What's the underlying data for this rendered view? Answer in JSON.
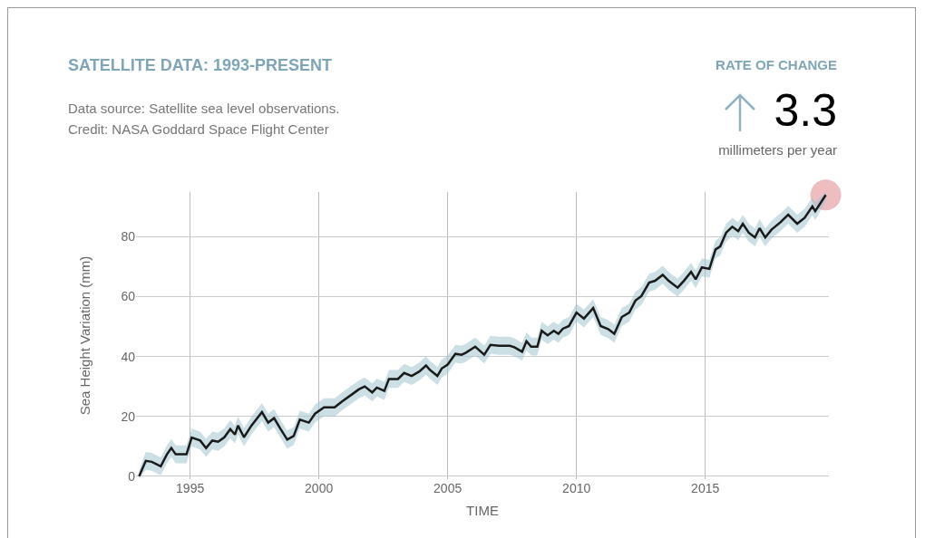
{
  "chart_data": {
    "type": "line",
    "title": "SATELLITE DATA: 1993-PRESENT",
    "subtitle": "Data source: Satellite sea level observations.\nCredit: NASA Goddard Space Flight Center",
    "annotations": [
      "RATE OF CHANGE",
      "3.3",
      "millimeters per year"
    ],
    "xlabel": "TIME",
    "ylabel": "Sea Height Variation (mm)",
    "xlim": [
      1992.9,
      2019.8
    ],
    "xticks": [
      1995,
      2000,
      2005,
      2010,
      2015
    ],
    "ylim": [
      -1,
      95
    ],
    "yticks": [
      0,
      20,
      40,
      60,
      80
    ],
    "grid": true,
    "marker": "none",
    "line_style": "solid",
    "series": [
      {
        "color": "#1a1a1a",
        "x": [
          1993.02,
          1993.28,
          1993.51,
          1993.86,
          1994.1,
          1994.27,
          1994.44,
          1994.86,
          1995.06,
          1995.39,
          1995.62,
          1995.86,
          1996.09,
          1996.33,
          1996.56,
          1996.74,
          1996.86,
          1997.09,
          1997.38,
          1997.79,
          1998.03,
          1998.26,
          1998.5,
          1998.77,
          1999.02,
          1999.26,
          1999.61,
          1999.85,
          2000.2,
          2000.61,
          2000.9,
          2001.31,
          2001.55,
          2001.78,
          2002.07,
          2002.25,
          2002.54,
          2002.72,
          2003.07,
          2003.31,
          2003.6,
          2003.9,
          2004.16,
          2004.3,
          2004.6,
          2004.77,
          2005.0,
          2005.3,
          2005.54,
          2005.71,
          2006.07,
          2006.42,
          2006.66,
          2007.0,
          2007.41,
          2007.59,
          2007.89,
          2008.06,
          2008.24,
          2008.48,
          2008.65,
          2008.88,
          2009.12,
          2009.3,
          2009.47,
          2009.71,
          2010.0,
          2010.29,
          2010.65,
          2010.94,
          2011.23,
          2011.47,
          2011.76,
          2012.05,
          2012.29,
          2012.52,
          2012.82,
          2013.05,
          2013.35,
          2013.58,
          2013.93,
          2014.17,
          2014.45,
          2014.63,
          2014.87,
          2015.16,
          2015.4,
          2015.58,
          2015.81,
          2016.05,
          2016.28,
          2016.46,
          2016.69,
          2016.93,
          2017.11,
          2017.33,
          2017.57,
          2017.92,
          2018.22,
          2018.57,
          2018.86,
          2019.16,
          2019.27,
          2019.68
        ],
        "values": [
          0,
          5.1,
          4.8,
          3.3,
          7.3,
          9.4,
          7.3,
          7.3,
          12.9,
          11.9,
          9.4,
          11.9,
          11.5,
          13,
          15.7,
          13.9,
          16.9,
          13,
          16.9,
          21.4,
          17.9,
          19.4,
          15.9,
          12.2,
          13.4,
          18.9,
          17.9,
          20.9,
          23,
          23,
          25,
          27.5,
          29,
          30,
          28,
          29.6,
          28.5,
          32.5,
          32.5,
          34.5,
          33.5,
          35,
          37,
          35.6,
          33.5,
          36,
          37.3,
          40.9,
          40.6,
          41.3,
          43.3,
          40.6,
          43.9,
          43.6,
          43.6,
          43.1,
          41.6,
          45.1,
          43.3,
          43.3,
          48.6,
          47.1,
          48.6,
          47.6,
          49.3,
          50.2,
          54.7,
          52.7,
          56.2,
          50.2,
          49.2,
          47.6,
          53.2,
          54.7,
          58.7,
          60.2,
          64.7,
          65.3,
          67.3,
          65.3,
          63,
          65.3,
          68.3,
          65.8,
          69.8,
          69.3,
          75.8,
          76.8,
          81.4,
          83.4,
          81.9,
          84.4,
          81.4,
          79.8,
          82.9,
          79.8,
          82.4,
          84.9,
          87.4,
          84.4,
          86.4,
          90.2,
          88.6,
          94
        ],
        "lower": [
          -1,
          2.1,
          1.8,
          0.3,
          4.3,
          6.4,
          4.3,
          4.3,
          9.9,
          8.9,
          6.4,
          8.9,
          8.5,
          10,
          12.7,
          10.9,
          13.9,
          10,
          13.9,
          18.4,
          14.9,
          16.4,
          12.9,
          9.2,
          10.4,
          15.9,
          14.9,
          17.9,
          20,
          20,
          22,
          24.5,
          26,
          27,
          25,
          26.6,
          25.5,
          29.5,
          29.5,
          31.5,
          30.5,
          32,
          34,
          32.6,
          30.5,
          33,
          34.3,
          37.9,
          37.6,
          38.3,
          40.3,
          37.6,
          40.9,
          40.6,
          40.6,
          40.1,
          38.6,
          42.1,
          40.3,
          40.3,
          45.6,
          44.1,
          45.6,
          44.6,
          46.3,
          47.2,
          51.7,
          49.7,
          53.2,
          47.2,
          46.2,
          44.6,
          50.2,
          51.7,
          55.7,
          57.2,
          61.7,
          62.3,
          64.3,
          62.3,
          60,
          62.3,
          65.3,
          62.8,
          66.8,
          66.3,
          72.8,
          73.8,
          78.4,
          80.4,
          78.9,
          81.4,
          78.4,
          76.8,
          79.9,
          76.8,
          79.4,
          81.9,
          84.4,
          81.4,
          83.4,
          87.2,
          85.6,
          92
        ],
        "upper": [
          2,
          8.1,
          7.8,
          6.3,
          10.3,
          12.4,
          10.3,
          10.3,
          15.9,
          14.9,
          12.4,
          14.9,
          14.5,
          16,
          18.7,
          16.9,
          19.9,
          16,
          19.9,
          24.4,
          20.9,
          22.4,
          18.9,
          15.2,
          16.4,
          21.9,
          20.9,
          23.9,
          26,
          26,
          28,
          30.5,
          32,
          33,
          31,
          32.6,
          31.5,
          35.5,
          35.5,
          37.5,
          36.5,
          38,
          40,
          38.6,
          36.5,
          39,
          40.3,
          43.9,
          43.6,
          44.3,
          46.3,
          43.6,
          46.9,
          46.6,
          46.6,
          46.1,
          44.6,
          48.1,
          46.3,
          46.3,
          51.6,
          50.1,
          51.6,
          50.6,
          52.3,
          53.2,
          57.7,
          55.7,
          59.2,
          53.2,
          52.2,
          50.6,
          56.2,
          57.7,
          61.7,
          63.2,
          67.7,
          68.3,
          70.3,
          68.3,
          66,
          68.3,
          71.3,
          68.8,
          72.8,
          72.3,
          78.8,
          79.8,
          84.4,
          86.4,
          84.9,
          87.4,
          84.4,
          82.8,
          85.9,
          82.8,
          85.4,
          87.9,
          90.4,
          87.4,
          89.4,
          93.2,
          91.6,
          95
        ]
      },
      {
        "type": "scatter",
        "marker": "circle",
        "color": "#e8a7ad",
        "x": [
          2019.68
        ],
        "values": [
          94
        ]
      }
    ]
  }
}
